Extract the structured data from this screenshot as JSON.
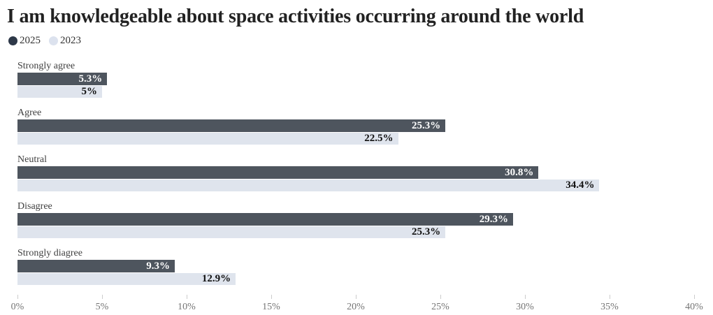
{
  "title": "I am knowledgeable about space activities occurring around the world",
  "legend": {
    "items": [
      {
        "label": "2025",
        "color": "#2d3848"
      },
      {
        "label": "2023",
        "color": "#dce2ee"
      }
    ]
  },
  "colors": {
    "bar_2025": "#4e555e",
    "bar_2023": "#dfe4ed",
    "value_on_2025": "#ffffff",
    "value_on_2023": "#111111",
    "category_label": "#3f3f3f",
    "axis_label": "#757575",
    "tick": "#cccccc",
    "title": "#222222"
  },
  "chart_data": {
    "type": "bar",
    "orientation": "horizontal",
    "title": "I am knowledgeable about space activities occurring around the world",
    "categories": [
      "Strongly agree",
      "Agree",
      "Neutral",
      "Disagree",
      "Strongly diagree"
    ],
    "series": [
      {
        "name": "2025",
        "values": [
          5.3,
          25.3,
          30.8,
          29.3,
          9.3
        ],
        "labels": [
          "5.3%",
          "25.3%",
          "30.8%",
          "29.3%",
          "9.3%"
        ]
      },
      {
        "name": "2023",
        "values": [
          5,
          22.5,
          34.4,
          25.3,
          12.9
        ],
        "labels": [
          "5%",
          "22.5%",
          "34.4%",
          "25.3%",
          "12.9%"
        ]
      }
    ],
    "xlim": [
      0,
      40
    ],
    "x_ticks": [
      "0%",
      "5%",
      "10%",
      "15%",
      "20%",
      "25%",
      "30%",
      "35%",
      "40%"
    ],
    "grid": false,
    "legend_position": "top-left"
  }
}
